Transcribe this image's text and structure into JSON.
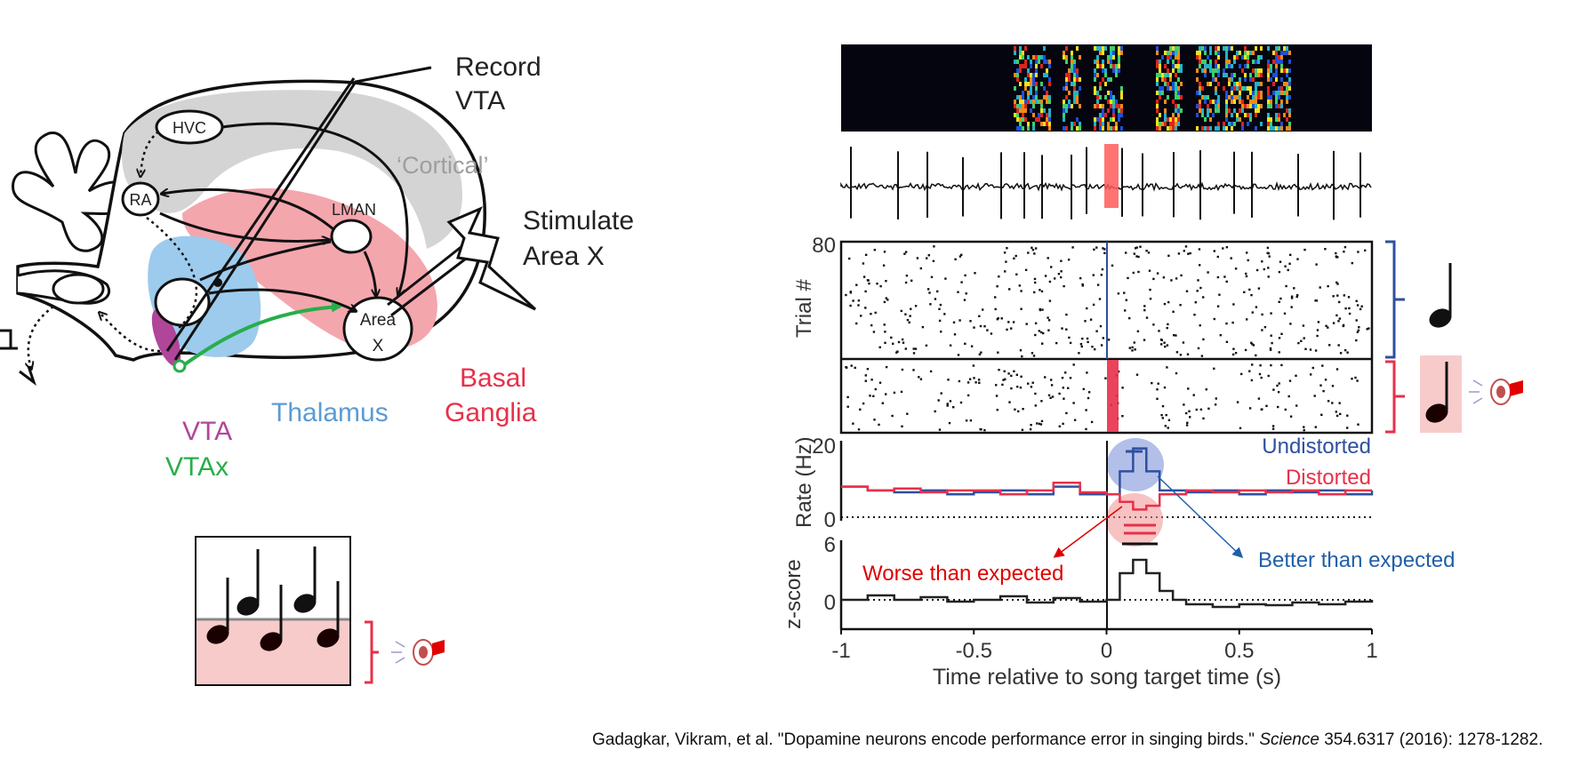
{
  "colors": {
    "thalamus": "#5b9bd5",
    "basal_ganglia": "#e8304a",
    "vta": "#b0459a",
    "vtax": "#27ae4a",
    "cortical": "#9e9e9e",
    "undistorted": "#2f4f9f",
    "distorted": "#e8304a",
    "worse_text": "#e00000",
    "better_text": "#1f5fa8"
  },
  "brain": {
    "record_line1": "Record",
    "record_line2": "VTA",
    "hvc": "HVC",
    "ra": "RA",
    "lman": "LMAN",
    "area_x_line1": "Area",
    "area_x_line2": "X",
    "cortical": "‘Cortical’",
    "stimulate_line1": "Stimulate",
    "stimulate_line2": "Area X",
    "basal_line1": "Basal",
    "basal_line2": "Ganglia",
    "thalamus": "Thalamus",
    "vta": "VTA",
    "vtax": "VTAx"
  },
  "figure": {
    "trial_axis_label": "Trial #",
    "trial_tick_top": "80",
    "rate_axis_label": "Rate (Hz)",
    "rate_tick_top": "20",
    "rate_tick_zero": "0",
    "legend_undistorted": "Undistorted",
    "legend_distorted": "Distorted",
    "z_axis_label": "z-score",
    "z_tick_top": "6",
    "z_tick_zero": "0",
    "x_tick_labels": [
      "-1",
      "-0.5",
      "0",
      "0.5",
      "1"
    ],
    "x_axis_label": "Time relative to song target time (s)",
    "worse_label": "Worse than expected",
    "better_label": "Better than expected"
  },
  "chart_data": {
    "type": "line",
    "xlabel": "Time relative to song target time (s)",
    "xlim": [
      -1,
      1
    ],
    "series": [
      {
        "name": "Undistorted",
        "x": [
          -1,
          -0.9,
          -0.8,
          -0.7,
          -0.6,
          -0.5,
          -0.4,
          -0.3,
          -0.2,
          -0.1,
          0,
          0.05,
          0.1,
          0.15,
          0.2,
          0.3,
          0.4,
          0.5,
          0.6,
          0.7,
          0.8,
          0.9,
          1
        ],
        "values": [
          8,
          7,
          6.5,
          7,
          6,
          6.5,
          7,
          6,
          8,
          6,
          6,
          12,
          18,
          12,
          7,
          6.5,
          7,
          6,
          7,
          6.5,
          7,
          6,
          7
        ]
      },
      {
        "name": "Distorted",
        "x": [
          -1,
          -0.9,
          -0.8,
          -0.7,
          -0.6,
          -0.5,
          -0.4,
          -0.3,
          -0.2,
          -0.1,
          0,
          0.05,
          0.1,
          0.15,
          0.2,
          0.3,
          0.4,
          0.5,
          0.6,
          0.7,
          0.8,
          0.9,
          1
        ],
        "values": [
          8,
          7,
          7.5,
          6.5,
          7,
          7,
          6,
          7,
          9,
          6.5,
          6,
          4,
          2,
          3,
          6,
          7,
          6.5,
          7,
          6.5,
          7,
          6,
          7,
          7
        ]
      }
    ],
    "rate_ylim": [
      0,
      20
    ],
    "z_ylim": [
      -2,
      6
    ],
    "z_score": {
      "x": [
        -1,
        -0.9,
        -0.8,
        -0.7,
        -0.6,
        -0.5,
        -0.4,
        -0.3,
        -0.2,
        -0.1,
        0,
        0.05,
        0.1,
        0.15,
        0.2,
        0.25,
        0.3,
        0.4,
        0.5,
        0.6,
        0.7,
        0.8,
        0.9,
        1
      ],
      "values": [
        0,
        0.5,
        0,
        0.3,
        -0.2,
        0,
        0.4,
        -0.3,
        0.2,
        -0.2,
        0,
        3,
        4.5,
        3,
        1,
        0,
        -0.5,
        -0.8,
        -0.5,
        -0.6,
        -0.3,
        -0.5,
        -0.2,
        0
      ]
    },
    "trials_total": 80
  },
  "citation": {
    "pre": "Gadagkar, Vikram, et al. \"Dopamine neurons encode performance error in singing birds.\" ",
    "journal": "Science",
    "post": " 354.6317 (2016): 1278-1282."
  }
}
